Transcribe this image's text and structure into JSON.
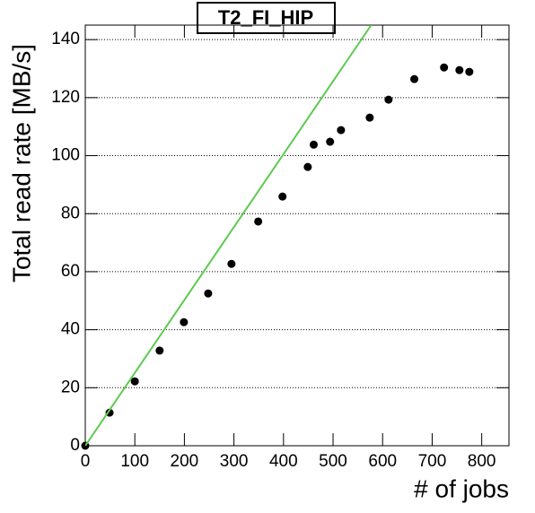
{
  "chart_data": {
    "type": "scatter",
    "title": "T2_FI_HIP",
    "x_label": "# of jobs",
    "y_label": "Total read rate [MB/s]",
    "xlim": [
      0,
      855
    ],
    "ylim": [
      0,
      145
    ],
    "xticks": [
      0,
      100,
      200,
      300,
      400,
      500,
      600,
      700,
      800
    ],
    "yticks": [
      0,
      20,
      40,
      60,
      80,
      100,
      120,
      140
    ],
    "grid": "y",
    "series": [
      {
        "draw": "markers",
        "color": "#000000",
        "x": [
          0,
          49,
          100,
          150,
          199,
          248,
          295,
          349,
          398,
          449,
          461,
          494,
          516,
          574,
          612,
          664,
          724,
          755,
          775
        ],
        "values": [
          0,
          11.4,
          22.2,
          32.8,
          42.6,
          52.5,
          62.7,
          77.3,
          85.9,
          96.1,
          103.8,
          104.8,
          108.8,
          113.1,
          119.3,
          126.4,
          130.4,
          129.5,
          128.9
        ]
      },
      {
        "draw": "line",
        "color": "#5ccb4f",
        "x": [
          0,
          577
        ],
        "values": [
          0,
          145
        ]
      }
    ]
  }
}
